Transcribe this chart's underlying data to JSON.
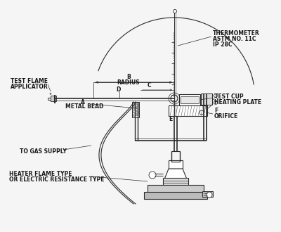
{
  "background_color": "#f5f5f5",
  "line_color": "#2a2a2a",
  "text_color": "#1a1a1a",
  "labels": {
    "thermometer": [
      "THERMOMETER",
      "ASTM NO. 11C",
      "IP 28C"
    ],
    "test_flame": [
      "TEST FLAME",
      "APPLICATOR"
    ],
    "radius_b": "B",
    "radius_text": "RADIUS",
    "c": "C",
    "d": "D",
    "e": "E",
    "f": "F",
    "a": "A",
    "metal_bead": "METAL BEAD",
    "test_cup": "TEST CUP",
    "heating_plate": "HEATING PLATE",
    "orifice": "ORIFICE",
    "gas_supply": "TO GAS SUPPLY",
    "heater1": "HEATER FLAME TYPE",
    "heater2": "OR ELECTRIC RESISTANCE TYPE"
  },
  "figsize": [
    4.0,
    3.3
  ],
  "dpi": 100
}
